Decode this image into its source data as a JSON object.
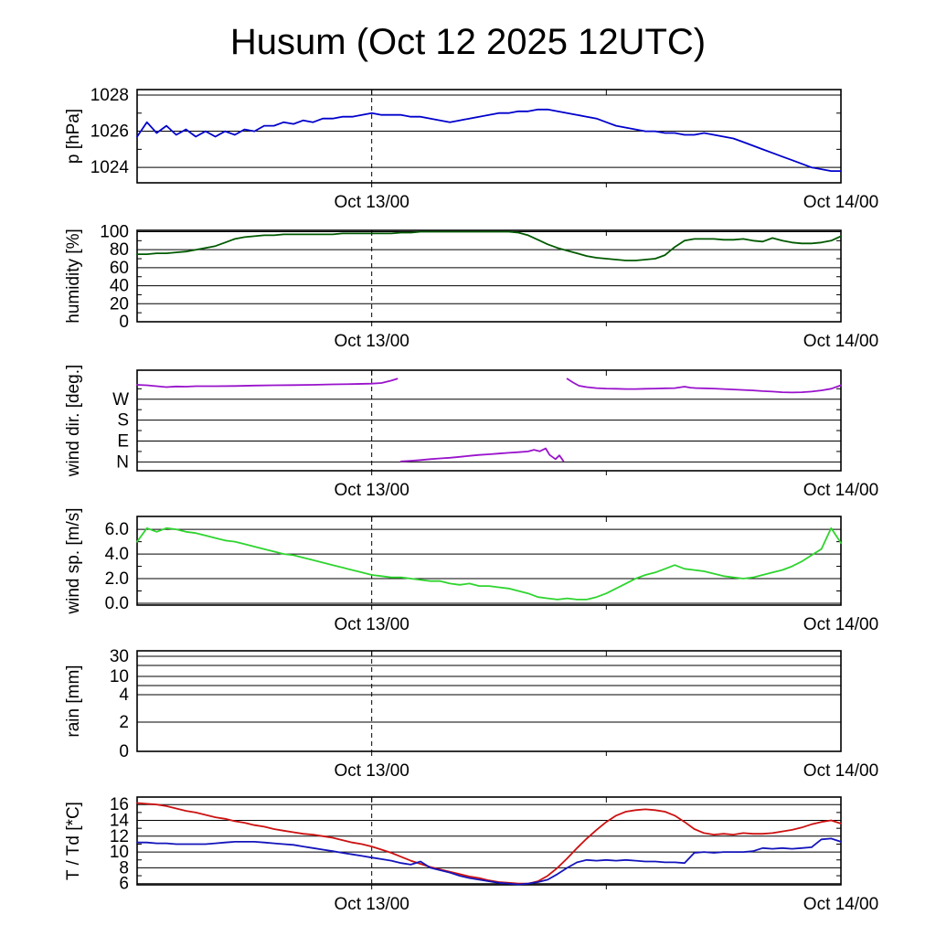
{
  "title": "Husum (Oct 12 2025 12UTC)",
  "x_axis": {
    "range_hours": [
      0,
      36
    ],
    "ticks": [
      {
        "hour": 12,
        "label": "Oct 13/00"
      },
      {
        "hour": 24,
        "label": ""
      },
      {
        "hour": 36,
        "label": "Oct 14/00"
      }
    ],
    "dashed_hour": 12
  },
  "chart_data": [
    {
      "name": "pressure",
      "type": "line",
      "ylabel": "p [hPa]",
      "ylim": [
        1023.15,
        1028.3
      ],
      "yticks": [
        {
          "v": 1024,
          "label": "1024"
        },
        {
          "v": 1026,
          "label": "1026"
        },
        {
          "v": 1028,
          "label": "1028"
        }
      ],
      "yminor": [
        1025,
        1027
      ],
      "series": [
        {
          "name": "pressure",
          "color": "#0000cc",
          "x0": 0,
          "dx": 0.5,
          "y": [
            1025.7,
            1026.5,
            1025.9,
            1026.3,
            1025.8,
            1026.1,
            1025.7,
            1026.0,
            1025.7,
            1026.0,
            1025.8,
            1026.1,
            1026.0,
            1026.3,
            1026.3,
            1026.5,
            1026.4,
            1026.6,
            1026.5,
            1026.7,
            1026.7,
            1026.8,
            1026.8,
            1026.9,
            1027.0,
            1026.9,
            1026.9,
            1026.9,
            1026.8,
            1026.8,
            1026.7,
            1026.6,
            1026.5,
            1026.6,
            1026.7,
            1026.8,
            1026.9,
            1027.0,
            1027.0,
            1027.1,
            1027.1,
            1027.2,
            1027.2,
            1027.1,
            1027.0,
            1026.9,
            1026.8,
            1026.7,
            1026.5,
            1026.3,
            1026.2,
            1026.1,
            1026.0,
            1026.0,
            1025.9,
            1025.9,
            1025.8,
            1025.8,
            1025.9,
            1025.8,
            1025.7,
            1025.6,
            1025.4,
            1025.2,
            1025.0,
            1024.8,
            1024.6,
            1024.4,
            1024.2,
            1024.0,
            1023.9,
            1023.8,
            1023.8
          ]
        }
      ]
    },
    {
      "name": "humidity",
      "type": "line",
      "ylabel": "humidity [%]",
      "ylim": [
        0,
        101.5
      ],
      "yticks": [
        {
          "v": 0,
          "label": "0"
        },
        {
          "v": 20,
          "label": "20"
        },
        {
          "v": 40,
          "label": "40"
        },
        {
          "v": 60,
          "label": "60"
        },
        {
          "v": 80,
          "label": "80"
        },
        {
          "v": 100,
          "label": "100"
        }
      ],
      "yminor": [
        10,
        30,
        50,
        70,
        90
      ],
      "series": [
        {
          "name": "humidity",
          "color": "#005a00",
          "x0": 0,
          "dx": 0.5,
          "y": [
            75,
            75,
            76,
            76,
            77,
            78,
            80,
            82,
            84,
            88,
            92,
            94,
            95,
            96,
            96,
            97,
            97,
            97,
            97,
            97,
            97,
            98,
            98,
            98,
            98,
            98,
            98,
            99,
            99,
            100,
            100,
            100,
            100,
            100,
            100,
            100,
            100,
            100,
            100,
            99,
            96,
            91,
            86,
            82,
            79,
            76,
            73,
            71,
            70,
            69,
            68,
            68,
            69,
            70,
            74,
            83,
            90,
            92,
            92,
            92,
            91,
            91,
            92,
            90,
            89,
            93,
            90,
            88,
            87,
            87,
            88,
            90,
            95
          ]
        }
      ]
    },
    {
      "name": "wind-direction",
      "type": "line",
      "ylabel": "wind dir. [deg.]",
      "ylim": [
        -38,
        395
      ],
      "yticks": [
        {
          "v": 0,
          "label": "N"
        },
        {
          "v": 90,
          "label": "E"
        },
        {
          "v": 180,
          "label": "S"
        },
        {
          "v": 270,
          "label": "W"
        }
      ],
      "yminor": [
        45,
        135,
        225,
        315
      ],
      "series": [
        {
          "name": "wind-direction",
          "color": "#9913cc",
          "x": [
            0,
            0.5,
            1,
            1.5,
            2,
            2.5,
            3,
            4,
            5,
            6,
            7,
            8,
            9,
            10,
            11,
            12,
            12.5,
            13,
            13.3,
            13.4,
            13.5,
            14,
            14.5,
            15,
            15.5,
            16,
            16.5,
            17,
            17.5,
            18,
            18.5,
            19,
            19.5,
            20,
            20.3,
            20.6,
            20.9,
            21.1,
            21.4,
            21.6,
            21.8,
            21.9,
            22,
            22.3,
            22.6,
            23,
            23.5,
            24,
            24.5,
            25,
            25.5,
            26,
            26.5,
            27,
            27.5,
            28,
            28.3,
            28.6,
            29,
            29.5,
            30,
            30.5,
            31,
            31.5,
            32,
            32.5,
            33,
            33.5,
            34,
            34.5,
            35,
            35.5,
            36
          ],
          "y": [
            332,
            330,
            326,
            322,
            325,
            324,
            326,
            326,
            327,
            329,
            330,
            331,
            332,
            334,
            335,
            337,
            340,
            350,
            358,
            null,
            2,
            5,
            8,
            12,
            15,
            18,
            22,
            26,
            30,
            33,
            36,
            39,
            42,
            45,
            52,
            46,
            58,
            30,
            12,
            28,
            4,
            null,
            358,
            342,
            328,
            322,
            318,
            316,
            315,
            314,
            314,
            315,
            316,
            317,
            318,
            324,
            320,
            318,
            317,
            316,
            314,
            312,
            310,
            308,
            305,
            303,
            300,
            299,
            300,
            303,
            308,
            315,
            330
          ]
        }
      ]
    },
    {
      "name": "wind-speed",
      "type": "line",
      "ylabel": "wind sp. [m/s]",
      "ylim": [
        -0.15,
        7.05
      ],
      "yticks": [
        {
          "v": 0,
          "label": "0.0"
        },
        {
          "v": 2,
          "label": "2.0"
        },
        {
          "v": 4,
          "label": "4.0"
        },
        {
          "v": 6,
          "label": "6.0"
        }
      ],
      "yminor": [
        1,
        3,
        5
      ],
      "series": [
        {
          "name": "wind-speed",
          "color": "#2fd42f",
          "x0": 0,
          "dx": 0.5,
          "y": [
            5.0,
            6.1,
            5.8,
            6.1,
            6.0,
            5.8,
            5.7,
            5.5,
            5.3,
            5.1,
            5.0,
            4.8,
            4.6,
            4.4,
            4.2,
            4.0,
            3.9,
            3.7,
            3.5,
            3.3,
            3.1,
            2.9,
            2.7,
            2.5,
            2.3,
            2.2,
            2.1,
            2.1,
            2.0,
            1.9,
            1.8,
            1.8,
            1.6,
            1.5,
            1.6,
            1.4,
            1.4,
            1.3,
            1.2,
            1.0,
            0.8,
            0.5,
            0.4,
            0.3,
            0.4,
            0.3,
            0.3,
            0.5,
            0.8,
            1.2,
            1.6,
            2.0,
            2.3,
            2.5,
            2.8,
            3.1,
            2.8,
            2.7,
            2.6,
            2.4,
            2.2,
            2.1,
            2.0,
            2.1,
            2.3,
            2.5,
            2.7,
            3.0,
            3.4,
            3.9,
            4.4,
            6.1,
            4.9
          ]
        }
      ]
    },
    {
      "name": "rain",
      "type": "line",
      "ylabel": "rain [mm]",
      "ylim": [
        0,
        1
      ],
      "yticks": [
        {
          "label": "30",
          "pos": 0.055
        },
        {
          "label": "",
          "pos": 0.145
        },
        {
          "label": "10",
          "pos": 0.255
        },
        {
          "label": "",
          "pos": 0.345
        },
        {
          "label": "4",
          "pos": 0.436
        },
        {
          "label": "2",
          "pos": 0.709
        },
        {
          "label": "0",
          "pos": 1.0
        }
      ],
      "yminor": [],
      "series": []
    },
    {
      "name": "temperature-dewpoint",
      "type": "line",
      "ylabel": "T / Td [*C]",
      "ylim": [
        5.85,
        16.95
      ],
      "yticks": [
        {
          "v": 6,
          "label": "6"
        },
        {
          "v": 8,
          "label": "8"
        },
        {
          "v": 10,
          "label": "10"
        },
        {
          "v": 12,
          "label": "12"
        },
        {
          "v": 14,
          "label": "14"
        },
        {
          "v": 16,
          "label": "16"
        }
      ],
      "yminor": [
        7,
        9,
        11,
        13,
        15
      ],
      "series": [
        {
          "name": "temperature",
          "color": "#cc1111",
          "x0": 0,
          "dx": 0.5,
          "y": [
            16.2,
            16.1,
            16.0,
            15.8,
            15.5,
            15.2,
            15.0,
            14.7,
            14.4,
            14.2,
            13.9,
            13.7,
            13.4,
            13.2,
            12.9,
            12.7,
            12.5,
            12.3,
            12.2,
            12.0,
            11.8,
            11.5,
            11.2,
            11.0,
            10.7,
            10.3,
            9.9,
            9.4,
            8.9,
            8.5,
            8.1,
            7.8,
            7.5,
            7.2,
            6.9,
            6.7,
            6.4,
            6.2,
            6.1,
            6.0,
            6.0,
            6.3,
            7.0,
            8.0,
            9.2,
            10.5,
            11.7,
            12.8,
            13.8,
            14.6,
            15.1,
            15.3,
            15.4,
            15.3,
            15.1,
            14.6,
            13.8,
            12.9,
            12.4,
            12.2,
            12.3,
            12.2,
            12.4,
            12.3,
            12.3,
            12.4,
            12.6,
            12.8,
            13.1,
            13.5,
            13.8,
            14.0,
            13.6
          ]
        },
        {
          "name": "dewpoint",
          "color": "#1414bb",
          "x0": 0,
          "dx": 0.5,
          "y": [
            11.2,
            11.2,
            11.1,
            11.1,
            11.0,
            11.0,
            11.0,
            11.0,
            11.1,
            11.2,
            11.3,
            11.3,
            11.3,
            11.2,
            11.1,
            11.0,
            10.9,
            10.7,
            10.5,
            10.3,
            10.1,
            9.9,
            9.7,
            9.5,
            9.3,
            9.1,
            8.9,
            8.6,
            8.4,
            8.8,
            8.0,
            7.7,
            7.4,
            7.0,
            6.7,
            6.5,
            6.3,
            6.1,
            6.0,
            5.9,
            6.0,
            6.2,
            6.5,
            7.2,
            8.0,
            8.7,
            9.0,
            8.9,
            9.0,
            8.9,
            9.0,
            8.9,
            8.8,
            8.8,
            8.7,
            8.7,
            8.6,
            9.9,
            10.0,
            9.9,
            10.0,
            10.0,
            10.0,
            10.1,
            10.5,
            10.4,
            10.5,
            10.4,
            10.5,
            10.6,
            11.6,
            11.7,
            11.3
          ]
        }
      ]
    }
  ]
}
